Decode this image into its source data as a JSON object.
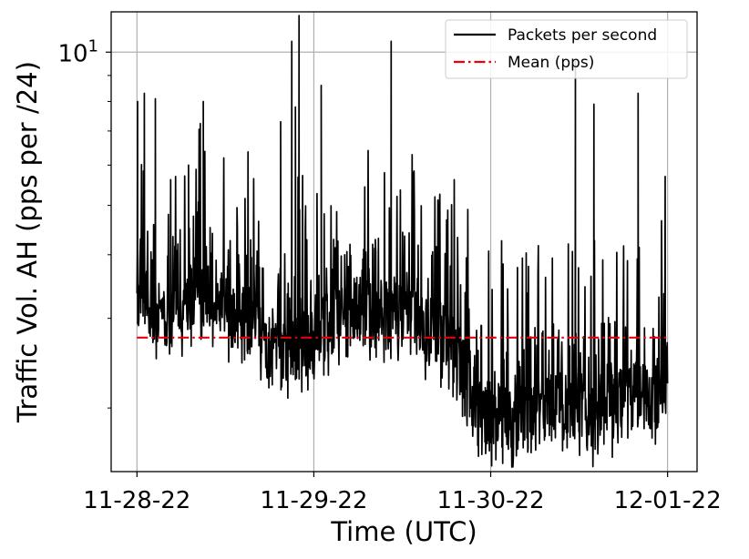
{
  "chart_data": {
    "type": "line",
    "xlabel": "Time (UTC)",
    "ylabel": "Traffic Vol. AH (pps per /24)",
    "x_scale": "time",
    "y_scale": "log",
    "xlim": [
      "2022-11-27T20:30",
      "2022-12-01T04:00"
    ],
    "ylim": [
      1.5,
      12.0
    ],
    "x_ticks": [
      {
        "value": "2022-11-28T00:00",
        "label": "11-28-22"
      },
      {
        "value": "2022-11-29T00:00",
        "label": "11-29-22"
      },
      {
        "value": "2022-11-30T00:00",
        "label": "11-30-22"
      },
      {
        "value": "2022-12-01T00:00",
        "label": "12-01-22"
      }
    ],
    "y_ticks": [
      {
        "value": 10,
        "label_base": "10",
        "label_exp": "1"
      }
    ],
    "grid": true,
    "legend": "top-right",
    "series": [
      {
        "name": "Packets per second",
        "color": "#000000",
        "style": "solid",
        "x": [
          "2022-11-28T00:00",
          "2022-11-28T02:00",
          "2022-11-28T04:00",
          "2022-11-28T06:00",
          "2022-11-28T08:00",
          "2022-11-28T10:00",
          "2022-11-28T12:00",
          "2022-11-28T14:00",
          "2022-11-28T16:00",
          "2022-11-28T18:00",
          "2022-11-28T20:00",
          "2022-11-28T22:00",
          "2022-11-29T00:00",
          "2022-11-29T02:00",
          "2022-11-29T04:00",
          "2022-11-29T06:00",
          "2022-11-29T08:00",
          "2022-11-29T10:00",
          "2022-11-29T12:00",
          "2022-11-29T14:00",
          "2022-11-29T16:00",
          "2022-11-29T18:00",
          "2022-11-29T20:00",
          "2022-11-29T22:00",
          "2022-11-30T00:00",
          "2022-11-30T02:00",
          "2022-11-30T04:00",
          "2022-11-30T06:00",
          "2022-11-30T08:00",
          "2022-11-30T10:00",
          "2022-11-30T12:00",
          "2022-11-30T14:00",
          "2022-11-30T16:00",
          "2022-11-30T18:00",
          "2022-11-30T20:00",
          "2022-11-30T22:00",
          "2022-12-01T00:00"
        ],
        "y": [
          3.5,
          3.1,
          2.9,
          3.0,
          3.4,
          3.2,
          3.1,
          3.0,
          2.9,
          2.6,
          2.5,
          2.6,
          2.7,
          2.9,
          3.0,
          3.1,
          3.0,
          3.0,
          3.0,
          2.9,
          2.8,
          2.7,
          2.4,
          2.0,
          1.9,
          1.9,
          1.9,
          1.9,
          2.0,
          2.0,
          2.0,
          1.9,
          2.1,
          2.0,
          2.1,
          2.0,
          2.3
        ],
        "peaks": [
          {
            "x": "2022-11-28T00:05",
            "y": 8.0
          },
          {
            "x": "2022-11-28T01:00",
            "y": 8.3
          },
          {
            "x": "2022-11-28T02:30",
            "y": 8.1
          },
          {
            "x": "2022-11-28T07:00",
            "y": 6.0
          },
          {
            "x": "2022-11-28T09:00",
            "y": 8.0
          },
          {
            "x": "2022-11-28T19:30",
            "y": 7.3
          },
          {
            "x": "2022-11-28T21:00",
            "y": 10.5
          },
          {
            "x": "2022-11-28T21:30",
            "y": 7.8
          },
          {
            "x": "2022-11-28T22:00",
            "y": 11.8
          },
          {
            "x": "2022-11-29T01:00",
            "y": 8.6
          },
          {
            "x": "2022-11-29T10:30",
            "y": 10.5
          },
          {
            "x": "2022-11-30T11:30",
            "y": 9.6
          },
          {
            "x": "2022-11-30T14:00",
            "y": 7.9
          },
          {
            "x": "2022-11-30T20:00",
            "y": 8.3
          },
          {
            "x": "2022-11-30T23:40",
            "y": 5.7
          }
        ],
        "dips": [
          {
            "x": "2022-11-30T03:00",
            "y": 1.6
          },
          {
            "x": "2022-11-30T16:30",
            "y": 1.6
          }
        ]
      },
      {
        "name": "Mean (pps)",
        "color": "#e8000b",
        "style": "dashdot",
        "x": [
          "2022-11-28T00:00",
          "2022-12-01T00:00"
        ],
        "y": [
          2.75,
          2.75
        ]
      }
    ]
  }
}
